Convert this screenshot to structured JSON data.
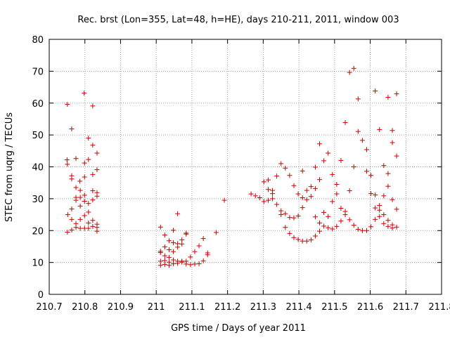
{
  "chart_data": {
    "type": "scatter",
    "title": "Rec. brst (Lon=355, Lat=48, h=HE), days 210-211, 2011, window 003",
    "xlabel": "GPS time / Days of year 2011",
    "ylabel": "STEC from uqrg / TECUs",
    "xlim": [
      210.7,
      211.8
    ],
    "ylim": [
      0,
      80
    ],
    "x_ticks": [
      "210.7",
      "210.8",
      "210.9",
      "211",
      "211.1",
      "211.2",
      "211.3",
      "211.4",
      "211.5",
      "211.6",
      "211.7",
      "211.8"
    ],
    "y_ticks": [
      "0",
      "10",
      "20",
      "30",
      "40",
      "50",
      "60",
      "70",
      "80"
    ],
    "x_tick_values": [
      210.7,
      210.8,
      210.9,
      211.0,
      211.1,
      211.2,
      211.3,
      211.4,
      211.5,
      211.6,
      211.7,
      211.8
    ],
    "y_tick_values": [
      0,
      10,
      20,
      30,
      40,
      50,
      60,
      70,
      80
    ],
    "grid": true,
    "marker": "plus",
    "marker_color": "#cc0000",
    "series": [
      {
        "points": [
          [
            210.751,
            59.6
          ],
          [
            210.75,
            42.2
          ],
          [
            210.751,
            40.8
          ],
          [
            210.752,
            25.0
          ],
          [
            210.751,
            19.5
          ],
          [
            210.763,
            51.9
          ],
          [
            210.763,
            37.2
          ],
          [
            210.763,
            36.2
          ],
          [
            210.763,
            26.8
          ],
          [
            210.763,
            23.5
          ],
          [
            210.763,
            20.2
          ],
          [
            210.775,
            42.6
          ],
          [
            210.775,
            33.5
          ],
          [
            210.775,
            30.4
          ],
          [
            210.775,
            29.5
          ],
          [
            210.775,
            22.2
          ],
          [
            210.775,
            21.0
          ],
          [
            210.786,
            35.5
          ],
          [
            210.787,
            32.6
          ],
          [
            210.787,
            30.4
          ],
          [
            210.787,
            27.7
          ],
          [
            210.787,
            23.5
          ],
          [
            210.787,
            20.7
          ],
          [
            210.798,
            63.1
          ],
          [
            210.799,
            41.2
          ],
          [
            210.799,
            36.8
          ],
          [
            210.799,
            31.1
          ],
          [
            210.799,
            29.2
          ],
          [
            210.799,
            24.7
          ],
          [
            210.799,
            20.7
          ],
          [
            210.81,
            49.0
          ],
          [
            210.81,
            42.3
          ],
          [
            210.81,
            28.5
          ],
          [
            210.81,
            25.8
          ],
          [
            210.81,
            22.4
          ],
          [
            210.81,
            20.7
          ],
          [
            210.822,
            59.1
          ],
          [
            210.822,
            46.8
          ],
          [
            210.822,
            37.6
          ],
          [
            210.822,
            32.5
          ],
          [
            210.822,
            29.6
          ],
          [
            210.822,
            23.2
          ],
          [
            210.822,
            21.3
          ],
          [
            210.834,
            44.3
          ],
          [
            210.834,
            39.1
          ],
          [
            210.834,
            31.9
          ],
          [
            210.834,
            30.8
          ],
          [
            210.834,
            22.0
          ],
          [
            210.834,
            21.0
          ],
          [
            210.834,
            19.8
          ],
          [
            211.012,
            21.1
          ],
          [
            211.012,
            13.5
          ],
          [
            211.012,
            13.1
          ],
          [
            211.012,
            10.4
          ],
          [
            211.012,
            9.1
          ],
          [
            211.024,
            18.6
          ],
          [
            211.024,
            14.9
          ],
          [
            211.024,
            12.1
          ],
          [
            211.024,
            10.6
          ],
          [
            211.024,
            9.4
          ],
          [
            211.036,
            16.8
          ],
          [
            211.036,
            14.0
          ],
          [
            211.036,
            11.6
          ],
          [
            211.036,
            10.1
          ],
          [
            211.036,
            9.1
          ],
          [
            211.048,
            20.1
          ],
          [
            211.048,
            16.2
          ],
          [
            211.048,
            13.4
          ],
          [
            211.048,
            10.8
          ],
          [
            211.048,
            9.6
          ],
          [
            211.06,
            25.3
          ],
          [
            211.06,
            15.9
          ],
          [
            211.06,
            14.8
          ],
          [
            211.06,
            10.4
          ],
          [
            211.06,
            9.7
          ],
          [
            211.072,
            17.1
          ],
          [
            211.072,
            15.8
          ],
          [
            211.072,
            10.4
          ],
          [
            211.072,
            10.1
          ],
          [
            211.084,
            19.2
          ],
          [
            211.084,
            18.9
          ],
          [
            211.084,
            10.4
          ],
          [
            211.084,
            9.5
          ],
          [
            211.096,
            11.7
          ],
          [
            211.096,
            9.3
          ],
          [
            211.108,
            13.4
          ],
          [
            211.108,
            9.5
          ],
          [
            211.12,
            15.2
          ],
          [
            211.12,
            9.6
          ],
          [
            211.132,
            17.5
          ],
          [
            211.132,
            10.5
          ],
          [
            211.144,
            13.0
          ],
          [
            211.144,
            12.4
          ],
          [
            211.168,
            19.4
          ],
          [
            211.191,
            29.5
          ],
          [
            211.266,
            31.5
          ],
          [
            211.278,
            30.9
          ],
          [
            211.29,
            30.3
          ],
          [
            211.302,
            35.3
          ],
          [
            211.302,
            29.1
          ],
          [
            211.314,
            35.9
          ],
          [
            211.314,
            32.9
          ],
          [
            211.314,
            29.5
          ],
          [
            211.326,
            32.6
          ],
          [
            211.326,
            31.6
          ],
          [
            211.326,
            30.0
          ],
          [
            211.338,
            37.1
          ],
          [
            211.338,
            28.2
          ],
          [
            211.35,
            41.0
          ],
          [
            211.35,
            26.2
          ],
          [
            211.35,
            25.0
          ],
          [
            211.362,
            39.6
          ],
          [
            211.362,
            25.3
          ],
          [
            211.362,
            21.0
          ],
          [
            211.374,
            37.3
          ],
          [
            211.374,
            24.1
          ],
          [
            211.374,
            19.1
          ],
          [
            211.386,
            34.1
          ],
          [
            211.386,
            24.0
          ],
          [
            211.386,
            17.8
          ],
          [
            211.398,
            31.5
          ],
          [
            211.398,
            24.6
          ],
          [
            211.398,
            17.2
          ],
          [
            211.41,
            38.7
          ],
          [
            211.41,
            30.3
          ],
          [
            211.41,
            27.2
          ],
          [
            211.41,
            16.7
          ],
          [
            211.422,
            32.6
          ],
          [
            211.422,
            29.7
          ],
          [
            211.422,
            16.7
          ],
          [
            211.434,
            33.8
          ],
          [
            211.434,
            30.7
          ],
          [
            211.434,
            17.1
          ],
          [
            211.446,
            39.9
          ],
          [
            211.446,
            33.2
          ],
          [
            211.446,
            24.3
          ],
          [
            211.446,
            18.3
          ],
          [
            211.458,
            47.2
          ],
          [
            211.458,
            36.0
          ],
          [
            211.458,
            22.4
          ],
          [
            211.458,
            19.8
          ],
          [
            211.47,
            41.9
          ],
          [
            211.47,
            25.7
          ],
          [
            211.47,
            21.4
          ],
          [
            211.482,
            44.3
          ],
          [
            211.482,
            24.4
          ],
          [
            211.482,
            20.9
          ],
          [
            211.494,
            37.6
          ],
          [
            211.494,
            29.1
          ],
          [
            211.494,
            20.5
          ],
          [
            211.506,
            34.5
          ],
          [
            211.506,
            31.5
          ],
          [
            211.506,
            21.3
          ],
          [
            211.518,
            42.0
          ],
          [
            211.518,
            27.0
          ],
          [
            211.518,
            23.0
          ],
          [
            211.53,
            53.9
          ],
          [
            211.53,
            26.0
          ],
          [
            211.53,
            25.0
          ],
          [
            211.542,
            69.6
          ],
          [
            211.542,
            32.5
          ],
          [
            211.542,
            23.4
          ],
          [
            211.554,
            70.9
          ],
          [
            211.554,
            40.0
          ],
          [
            211.554,
            21.7
          ],
          [
            211.566,
            61.3
          ],
          [
            211.566,
            51.1
          ],
          [
            211.566,
            20.4
          ],
          [
            211.578,
            48.3
          ],
          [
            211.578,
            20.0
          ],
          [
            211.59,
            45.4
          ],
          [
            211.59,
            38.6
          ],
          [
            211.59,
            20.0
          ],
          [
            211.602,
            37.3
          ],
          [
            211.602,
            31.6
          ],
          [
            211.602,
            21.2
          ],
          [
            211.614,
            63.8
          ],
          [
            211.614,
            31.2
          ],
          [
            211.614,
            27.1
          ],
          [
            211.614,
            23.5
          ],
          [
            211.626,
            51.7
          ],
          [
            211.626,
            27.9
          ],
          [
            211.626,
            26.4
          ],
          [
            211.626,
            24.4
          ],
          [
            211.638,
            40.4
          ],
          [
            211.638,
            30.9
          ],
          [
            211.638,
            25.0
          ],
          [
            211.638,
            22.2
          ],
          [
            211.65,
            61.8
          ],
          [
            211.65,
            37.9
          ],
          [
            211.65,
            33.9
          ],
          [
            211.65,
            23.2
          ],
          [
            211.65,
            21.3
          ],
          [
            211.662,
            51.4
          ],
          [
            211.662,
            47.6
          ],
          [
            211.662,
            29.7
          ],
          [
            211.662,
            21.8
          ],
          [
            211.662,
            20.8
          ],
          [
            211.674,
            62.9
          ],
          [
            211.674,
            43.4
          ],
          [
            211.674,
            26.7
          ],
          [
            211.674,
            21.1
          ]
        ]
      }
    ]
  }
}
